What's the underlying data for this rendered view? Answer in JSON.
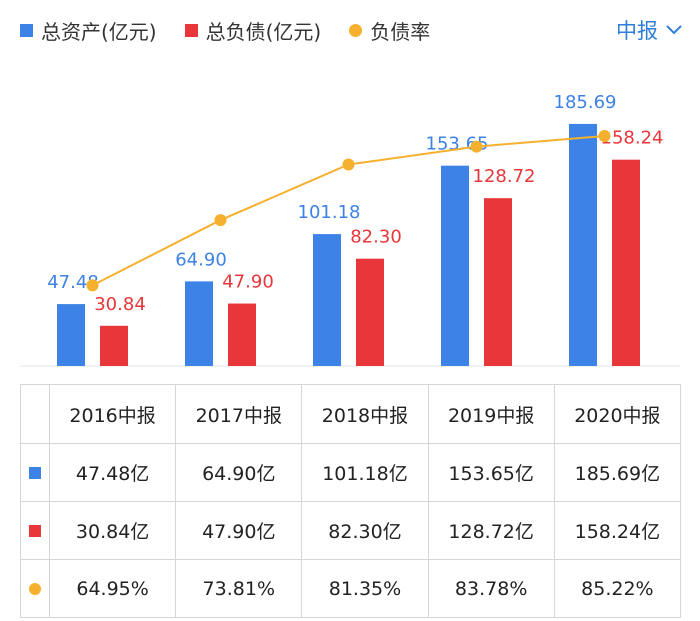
{
  "legend": {
    "assets_label": "总资产(亿元)",
    "liabilities_label": "总负债(亿元)",
    "ratio_label": "负债率"
  },
  "period_select": {
    "value": "中报"
  },
  "colors": {
    "assets": "#3d82e6",
    "liabilities": "#e8363a",
    "ratio": "#f5b02e",
    "accent": "#2f7fd9"
  },
  "chart_data": {
    "type": "bar",
    "categories": [
      "2016中报",
      "2017中报",
      "2018中报",
      "2019中报",
      "2020中报"
    ],
    "series": [
      {
        "name": "总资产(亿元)",
        "kind": "bar",
        "values": [
          47.48,
          64.9,
          101.18,
          153.65,
          185.69
        ],
        "labels": [
          "47.48",
          "64.90",
          "101.18",
          "153.65",
          "185.69"
        ]
      },
      {
        "name": "总负债(亿元)",
        "kind": "bar",
        "values": [
          30.84,
          47.9,
          82.3,
          128.72,
          158.24
        ],
        "labels": [
          "30.84",
          "47.90",
          "82.30",
          "128.72",
          "158.24"
        ]
      },
      {
        "name": "负债率",
        "kind": "line",
        "values": [
          64.95,
          73.81,
          81.35,
          83.78,
          85.22
        ]
      }
    ],
    "ylim": [
      0,
      200
    ],
    "ratio_ylim": [
      40,
      90
    ]
  },
  "table": {
    "headers": [
      "2016中报",
      "2017中报",
      "2018中报",
      "2019中报",
      "2020中报"
    ],
    "rows": [
      {
        "cells": [
          "47.48亿",
          "64.90亿",
          "101.18亿",
          "153.65亿",
          "185.69亿"
        ]
      },
      {
        "cells": [
          "30.84亿",
          "47.90亿",
          "82.30亿",
          "128.72亿",
          "158.24亿"
        ]
      },
      {
        "cells": [
          "64.95%",
          "73.81%",
          "81.35%",
          "83.78%",
          "85.22%"
        ]
      }
    ]
  }
}
